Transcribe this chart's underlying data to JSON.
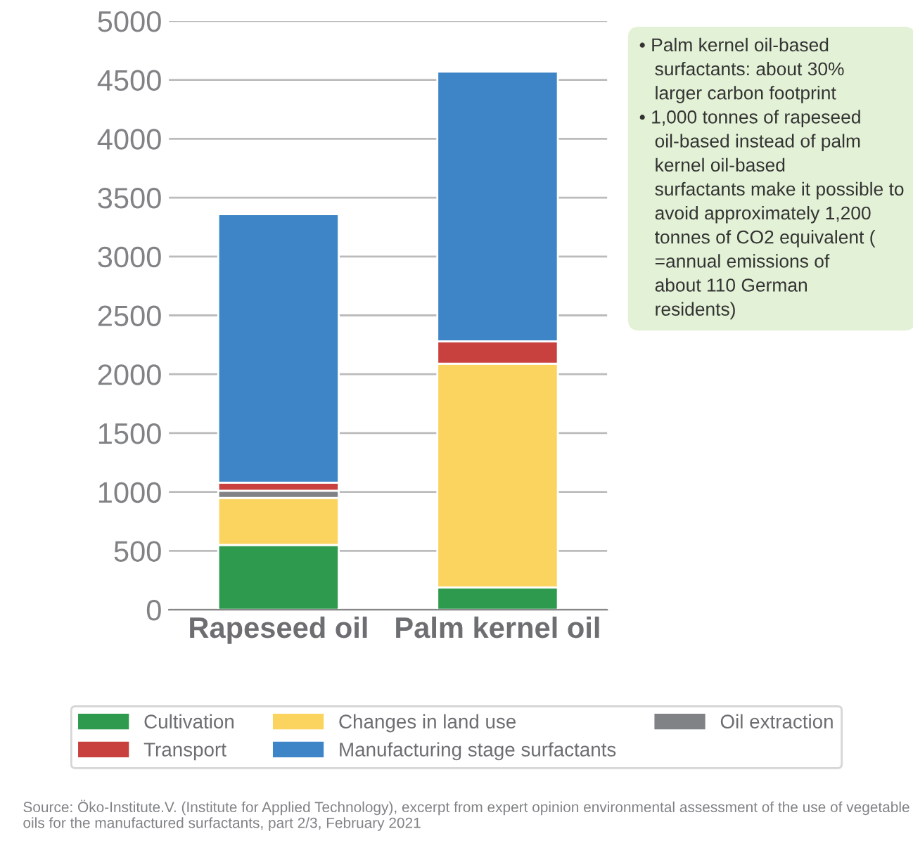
{
  "chart_data": {
    "type": "bar",
    "stacked": true,
    "categories": [
      "Rapeseed oil",
      "Palm kernel oil"
    ],
    "series": [
      {
        "name": "Cultivation",
        "color": "#2e9a4e",
        "values": [
          550,
          190
        ]
      },
      {
        "name": "Changes in land use",
        "color": "#fad45e",
        "values": [
          400,
          1900
        ]
      },
      {
        "name": "Oil extraction",
        "color": "#808285",
        "values": [
          60,
          0
        ]
      },
      {
        "name": "Transport",
        "color": "#c8413f",
        "values": [
          70,
          190
        ]
      },
      {
        "name": "Manufacturing stage surfactants",
        "color": "#3d85c6",
        "values": [
          2280,
          2290
        ]
      }
    ],
    "ylim": [
      0,
      5000
    ],
    "yticks": [
      0,
      500,
      1000,
      1500,
      2000,
      2500,
      3000,
      3500,
      4000,
      4500,
      5000
    ],
    "grid": "y",
    "legend": "bottom",
    "annotations": [
      "• Palm kernel oil-based\n   surfactants: about 30%\n   larger carbon footprint\n• 1,000 tonnes of rapeseed\n   oil-based instead of palm\n   kernel oil-based\n   surfactants make it possible to\n   avoid approximately 1,200\n   tonnes of CO2 equivalent (\n   =annual emissions of\n   about 110 German\n   residents)",
      "Source: Öko-Institute.V. (Institute for Applied Technology), excerpt from expert opinion environmental assessment of the use of vegetable oils for the manufactured surfactants, part 2/3, February 2021"
    ]
  }
}
